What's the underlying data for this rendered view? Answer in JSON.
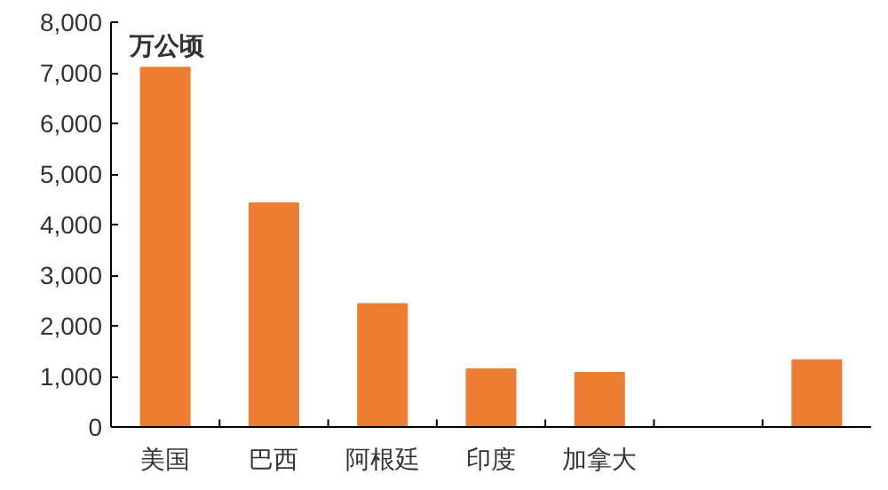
{
  "chart_data": {
    "type": "bar",
    "categories": [
      "美国",
      "巴西",
      "阿根廷",
      "印度",
      "加拿大",
      null,
      null
    ],
    "values": [
      7100,
      4420,
      2430,
      1140,
      1070,
      null,
      1320
    ],
    "color": "#ed7d31",
    "ylim": [
      0,
      8000
    ],
    "yticks": [
      {
        "value": 0,
        "label": "0"
      },
      {
        "value": 1000,
        "label": "1,000"
      },
      {
        "value": 2000,
        "label": "2,000"
      },
      {
        "value": 3000,
        "label": "3,000"
      },
      {
        "value": 4000,
        "label": "4,000"
      },
      {
        "value": 5000,
        "label": "5,000"
      },
      {
        "value": 6000,
        "label": "6,000"
      },
      {
        "value": 7000,
        "label": "7,000"
      },
      {
        "value": 8000,
        "label": "8,000"
      }
    ],
    "annotations": [
      "万公顷"
    ],
    "grid": false
  }
}
